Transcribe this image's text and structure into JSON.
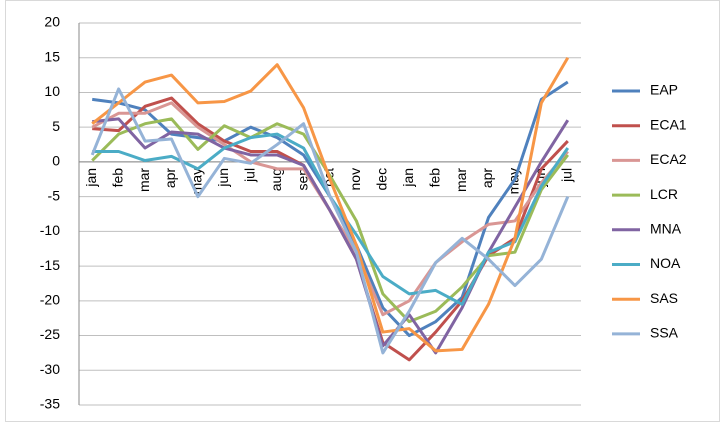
{
  "chart_data": {
    "type": "line",
    "categories": [
      "jan",
      "feb",
      "mar",
      "apr",
      "may",
      "jun",
      "jul",
      "aug",
      "sep",
      "oct",
      "nov",
      "dec",
      "jan",
      "feb",
      "mar",
      "apr",
      "may",
      "jun",
      "jul"
    ],
    "series": [
      {
        "name": "EAP",
        "color": "#4F81BD",
        "values": [
          9,
          8.5,
          7.5,
          4,
          3.5,
          3,
          5,
          3.5,
          1,
          -5,
          -12,
          -21,
          -25,
          -23,
          -19.5,
          -8,
          -2.5,
          9,
          11.5
        ]
      },
      {
        "name": "ECA1",
        "color": "#C0504D",
        "values": [
          4.8,
          4.5,
          8,
          9.2,
          5.5,
          3,
          1.5,
          1.5,
          -0.5,
          -7,
          -14,
          -26,
          -28.5,
          -24.5,
          -20,
          -13.5,
          -11,
          -1,
          3
        ]
      },
      {
        "name": "ECA2",
        "color": "#D99694",
        "values": [
          5,
          7,
          7,
          8.5,
          5,
          2.5,
          0,
          -1,
          -1,
          -7,
          -13,
          -22,
          -20,
          -14.5,
          -11.5,
          -9,
          -8.5,
          -3,
          1.5
        ]
      },
      {
        "name": "LCR",
        "color": "#9BBB59",
        "values": [
          0.2,
          4,
          5.5,
          6.2,
          1.8,
          5.2,
          3.5,
          5.5,
          4,
          -2,
          -8.5,
          -19,
          -23,
          -21.5,
          -18,
          -13.5,
          -13,
          -4,
          1
        ]
      },
      {
        "name": "MNA",
        "color": "#8064A2",
        "values": [
          5.8,
          6.2,
          2,
          4.3,
          4,
          2,
          1,
          1,
          -0.5,
          -7,
          -14,
          -26.5,
          -22,
          -27.5,
          -21,
          -13,
          -6.5,
          0,
          6
        ]
      },
      {
        "name": "NOA",
        "color": "#4BACC6",
        "values": [
          1.5,
          1.5,
          0.2,
          0.8,
          -1,
          2,
          3.5,
          4,
          2,
          -5,
          -10.5,
          -16.5,
          -19,
          -18.5,
          -20.5,
          -13,
          -11.5,
          -3.5,
          2
        ]
      },
      {
        "name": "SAS",
        "color": "#F79646",
        "values": [
          5.5,
          8.5,
          11.5,
          12.5,
          8.5,
          8.7,
          10.2,
          14,
          7.8,
          -2.5,
          -12,
          -24.5,
          -24,
          -27.2,
          -27,
          -20.5,
          -11,
          8.5,
          15
        ]
      },
      {
        "name": "SSA",
        "color": "#95B3D7",
        "values": [
          1,
          10.5,
          3,
          3.3,
          -5,
          0.5,
          -0.2,
          2.5,
          5.5,
          -5,
          -13,
          -27.5,
          -21.5,
          -14.5,
          -11,
          -14,
          -17.8,
          -14,
          -5
        ]
      }
    ],
    "ylim": [
      -35,
      20
    ],
    "yticks": [
      -35,
      -30,
      -25,
      -20,
      -15,
      -10,
      -5,
      0,
      5,
      10,
      15,
      20
    ],
    "grid": true,
    "legend": "right"
  }
}
